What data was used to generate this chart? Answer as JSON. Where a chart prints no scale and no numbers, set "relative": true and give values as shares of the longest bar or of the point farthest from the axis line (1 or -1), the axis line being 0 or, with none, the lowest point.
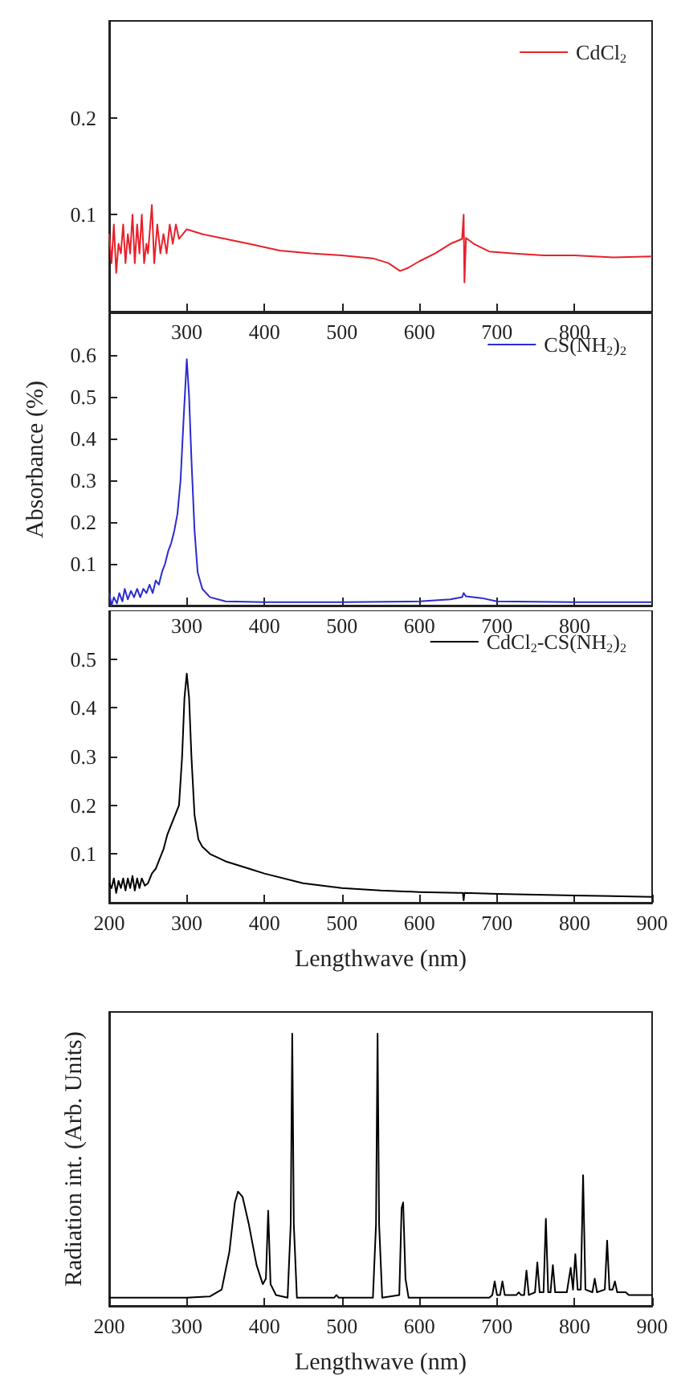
{
  "chart_data": [
    {
      "type": "line",
      "tick_labels": "xy",
      "legend": "top right",
      "grid": false,
      "xlim": [
        200,
        900
      ],
      "xticks": [
        300,
        400,
        500,
        600,
        700,
        800
      ],
      "ylim": [
        0,
        0.3
      ],
      "yticks": [
        0.1,
        0.2
      ],
      "series": [
        {
          "name": "CdCl$_{2}$",
          "color": "#e8202a",
          "x": [
            200,
            203,
            206,
            209,
            212,
            215,
            218,
            221,
            224,
            227,
            230,
            233,
            236,
            239,
            242,
            245,
            248,
            250,
            255,
            258,
            262,
            266,
            270,
            274,
            278,
            282,
            286,
            290,
            295,
            300,
            320,
            350,
            380,
            420,
            460,
            500,
            540,
            560,
            575,
            585,
            600,
            620,
            640,
            655,
            657,
            658,
            660,
            670,
            690,
            720,
            760,
            800,
            850,
            900
          ],
          "values": [
            0.08,
            0.05,
            0.09,
            0.04,
            0.07,
            0.06,
            0.09,
            0.05,
            0.08,
            0.06,
            0.1,
            0.05,
            0.09,
            0.06,
            0.1,
            0.05,
            0.07,
            0.06,
            0.11,
            0.05,
            0.09,
            0.06,
            0.08,
            0.06,
            0.09,
            0.07,
            0.09,
            0.075,
            0.08,
            0.085,
            0.08,
            0.075,
            0.07,
            0.063,
            0.06,
            0.058,
            0.055,
            0.05,
            0.042,
            0.045,
            0.052,
            0.06,
            0.07,
            0.075,
            0.1,
            0.03,
            0.076,
            0.07,
            0.062,
            0.06,
            0.058,
            0.058,
            0.056,
            0.057
          ]
        }
      ]
    },
    {
      "type": "line",
      "tick_labels": "xy",
      "legend": "top right",
      "grid": false,
      "ylabel": "Absorbance (%)",
      "xlim": [
        200,
        900
      ],
      "xticks": [
        300,
        400,
        500,
        600,
        700,
        800
      ],
      "ylim": [
        0,
        0.7
      ],
      "yticks": [
        0.1,
        0.2,
        0.3,
        0.4,
        0.5,
        0.6
      ],
      "series": [
        {
          "name": "CS(NH$_{2}$)$_{2}$",
          "color": "#2b2bd0",
          "x": [
            200,
            203,
            206,
            210,
            213,
            217,
            220,
            224,
            228,
            232,
            236,
            240,
            244,
            248,
            252,
            256,
            260,
            264,
            268,
            272,
            276,
            280,
            284,
            288,
            292,
            296,
            300,
            303,
            306,
            310,
            314,
            320,
            330,
            350,
            400,
            500,
            600,
            640,
            655,
            657,
            660,
            680,
            700,
            800,
            900
          ],
          "values": [
            0.03,
            0.0,
            0.02,
            0.005,
            0.03,
            0.01,
            0.04,
            0.015,
            0.035,
            0.02,
            0.04,
            0.02,
            0.04,
            0.03,
            0.05,
            0.03,
            0.06,
            0.05,
            0.08,
            0.1,
            0.13,
            0.15,
            0.18,
            0.22,
            0.3,
            0.45,
            0.59,
            0.5,
            0.35,
            0.18,
            0.08,
            0.04,
            0.02,
            0.01,
            0.008,
            0.008,
            0.01,
            0.015,
            0.02,
            0.03,
            0.022,
            0.018,
            0.01,
            0.008,
            0.008
          ]
        }
      ]
    },
    {
      "type": "line",
      "legend": "top right",
      "grid": false,
      "xlabel": "Lengthwave (nm)",
      "xlim": [
        200,
        900
      ],
      "xticks": [
        200,
        300,
        400,
        500,
        600,
        700,
        800,
        900
      ],
      "ylim": [
        0,
        0.6
      ],
      "yticks": [
        0.1,
        0.2,
        0.3,
        0.4,
        0.5
      ],
      "series": [
        {
          "name": "CdCl$_{2}$-CS(NH$_{2}$)$_{2}$",
          "color": "#000000",
          "x": [
            200,
            203,
            206,
            209,
            212,
            215,
            218,
            221,
            224,
            227,
            230,
            233,
            236,
            239,
            242,
            246,
            250,
            255,
            260,
            265,
            270,
            275,
            280,
            285,
            290,
            294,
            297,
            300,
            303,
            306,
            310,
            315,
            320,
            330,
            350,
            380,
            400,
            450,
            500,
            550,
            600,
            650,
            656,
            657,
            658,
            700,
            800,
            900
          ],
          "values": [
            0.04,
            0.03,
            0.05,
            0.02,
            0.045,
            0.03,
            0.05,
            0.025,
            0.05,
            0.03,
            0.055,
            0.025,
            0.05,
            0.03,
            0.05,
            0.035,
            0.04,
            0.06,
            0.07,
            0.09,
            0.11,
            0.14,
            0.16,
            0.18,
            0.2,
            0.3,
            0.42,
            0.47,
            0.42,
            0.3,
            0.18,
            0.13,
            0.115,
            0.1,
            0.085,
            0.07,
            0.06,
            0.04,
            0.03,
            0.025,
            0.022,
            0.02,
            0.02,
            0.005,
            0.02,
            0.018,
            0.015,
            0.012
          ]
        }
      ]
    },
    {
      "type": "line",
      "relative": true,
      "tick_labels": "x",
      "grid": false,
      "xlabel": "Lengthwave (nm)",
      "ylabel": "Radiation int. (Arb. Units)",
      "xlim": [
        200,
        900
      ],
      "xticks": [
        200,
        300,
        400,
        500,
        600,
        700,
        800,
        900
      ],
      "series": [
        {
          "color": "#000000",
          "x": [
            200,
            300,
            330,
            345,
            355,
            362,
            366,
            372,
            380,
            390,
            398,
            402,
            405,
            408,
            415,
            430,
            434,
            436,
            438,
            442,
            490,
            493,
            496,
            540,
            544,
            546,
            548,
            552,
            574,
            577,
            579,
            582,
            586,
            690,
            694,
            697,
            700,
            704,
            707,
            710,
            725,
            728,
            731,
            735,
            738,
            741,
            749,
            752,
            755,
            760,
            763,
            766,
            769,
            772,
            775,
            790,
            795,
            798,
            801,
            804,
            808,
            811,
            814,
            823,
            826,
            829,
            839,
            842,
            845,
            849,
            852,
            855,
            863,
            866,
            870,
            900
          ],
          "values": [
            0.03,
            0.03,
            0.035,
            0.06,
            0.2,
            0.38,
            0.42,
            0.4,
            0.3,
            0.15,
            0.08,
            0.1,
            0.35,
            0.08,
            0.04,
            0.03,
            0.3,
            1.0,
            0.3,
            0.03,
            0.03,
            0.04,
            0.03,
            0.03,
            0.3,
            1.0,
            0.3,
            0.03,
            0.04,
            0.36,
            0.38,
            0.1,
            0.03,
            0.03,
            0.04,
            0.09,
            0.04,
            0.04,
            0.09,
            0.04,
            0.04,
            0.05,
            0.04,
            0.04,
            0.13,
            0.04,
            0.05,
            0.16,
            0.05,
            0.05,
            0.32,
            0.05,
            0.05,
            0.15,
            0.05,
            0.05,
            0.14,
            0.06,
            0.19,
            0.06,
            0.06,
            0.48,
            0.06,
            0.05,
            0.1,
            0.05,
            0.06,
            0.24,
            0.06,
            0.06,
            0.09,
            0.05,
            0.05,
            0.05,
            0.04,
            0.04
          ]
        }
      ]
    }
  ]
}
